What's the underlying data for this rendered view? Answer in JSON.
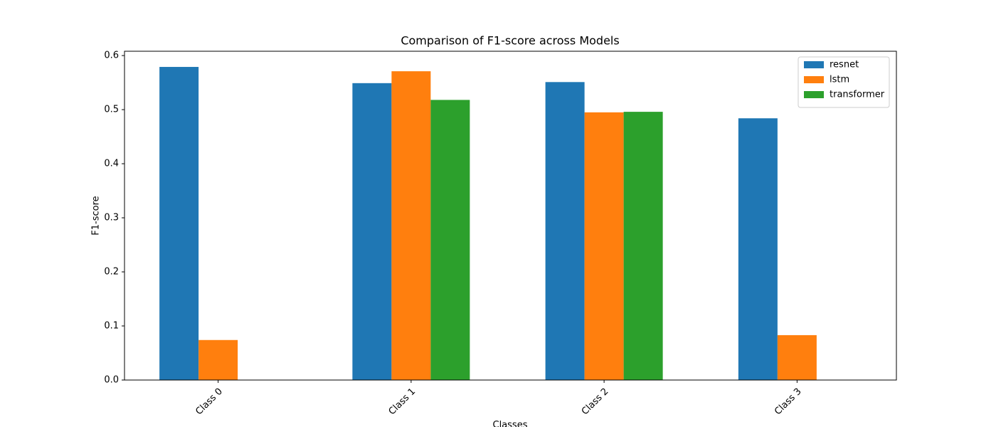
{
  "chart_data": {
    "type": "bar",
    "title": "Comparison of F1-score across Models",
    "x_label": "Classes",
    "y_label": "F1-score",
    "categories": [
      "Class 0",
      "Class 1",
      "Class 2",
      "Class 3"
    ],
    "series": [
      {
        "name": "resnet",
        "color": "#1f77b4",
        "values": [
          0.579,
          0.549,
          0.551,
          0.484
        ]
      },
      {
        "name": "lstm",
        "color": "#ff7f0e",
        "values": [
          0.074,
          0.571,
          0.495,
          0.083
        ]
      },
      {
        "name": "transformer",
        "color": "#2ca02c",
        "values": [
          0,
          0.518,
          0.496,
          0
        ]
      }
    ],
    "ylim": [
      0,
      0.608
    ],
    "yticks": [
      {
        "value": 0,
        "label": "0.0"
      },
      0.1,
      0.2,
      0.3,
      0.4,
      0.5,
      0.6
    ],
    "legend": "upper right"
  }
}
